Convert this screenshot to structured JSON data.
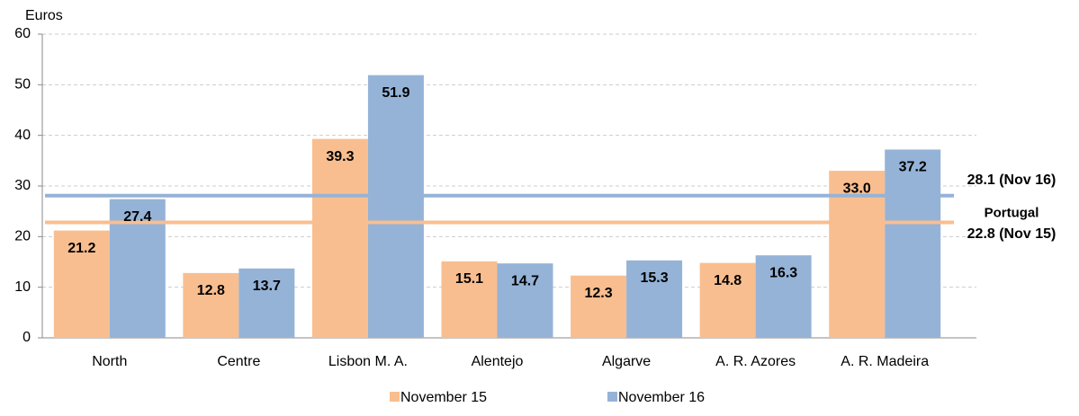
{
  "chart_data": {
    "type": "bar",
    "y_label": "Euros",
    "categories": [
      "North",
      "Centre",
      "Lisbon M. A.",
      "Alentejo",
      "Algarve",
      "A. R. Azores",
      "A. R. Madeira"
    ],
    "series": [
      {
        "name": "November 15",
        "color": "#f9be8f",
        "values": [
          21.2,
          12.8,
          39.3,
          15.1,
          12.3,
          14.8,
          33.0
        ],
        "value_labels": [
          "21.2",
          "12.8",
          "39.3",
          "15.1",
          "12.3",
          "14.8",
          "33.0"
        ]
      },
      {
        "name": "November 16",
        "color": "#95b3d7",
        "values": [
          27.4,
          13.7,
          51.9,
          14.7,
          15.3,
          16.3,
          37.2
        ],
        "value_labels": [
          "27.4",
          "13.7",
          "51.9",
          "14.7",
          "15.3",
          "16.3",
          "37.2"
        ]
      }
    ],
    "reference_lines": [
      {
        "value": 28.1,
        "label": "28.1 (Nov 16)",
        "color": "#95b3d7",
        "text_color": "#4f6f9f"
      },
      {
        "value": 22.8,
        "label": "22.8 (Nov 15)",
        "color": "#f9be8f",
        "text_color": "#e07b29"
      }
    ],
    "reference_annotation": "Portugal",
    "ylim": [
      0,
      60
    ],
    "yticks": [
      0,
      10,
      20,
      30,
      40,
      50,
      60
    ],
    "grid": true
  }
}
